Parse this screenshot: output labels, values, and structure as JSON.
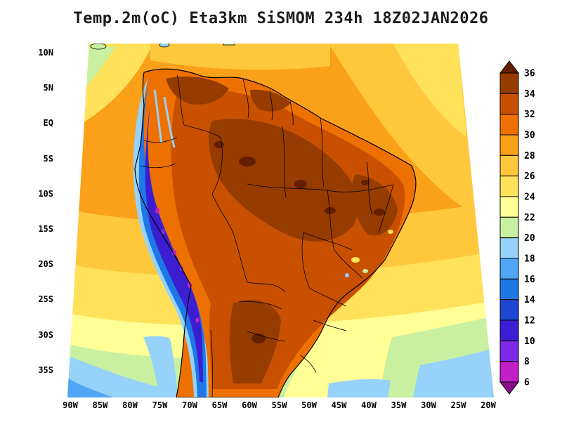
{
  "title": "Temp.2m(oC) Eta3km SiSMOM 234h 18Z02JAN2026",
  "chart_data": {
    "type": "heatmap",
    "title": "Temp.2m(oC) Eta3km SiSMOM 234h 18Z02JAN2026",
    "xlabel": "",
    "ylabel": "",
    "grid": false,
    "y_axis_ticks": [
      "10N",
      "5N",
      "EQ",
      "5S",
      "10S",
      "15S",
      "20S",
      "25S",
      "30S",
      "35S"
    ],
    "x_axis_ticks": [
      "90W",
      "85W",
      "80W",
      "75W",
      "70W",
      "65W",
      "60W",
      "55W",
      "50W",
      "45W",
      "40W",
      "35W",
      "30W",
      "25W",
      "20W"
    ],
    "colorbar": {
      "units": "oC",
      "position": "right",
      "levels": [
        6,
        8,
        10,
        12,
        14,
        16,
        18,
        20,
        22,
        24,
        26,
        28,
        30,
        32,
        34,
        36
      ],
      "colors_low_to_high": [
        "#8c0a8c",
        "#c41ec8",
        "#7d2ae8",
        "#3c1ed2",
        "#1e46d2",
        "#1e78e6",
        "#50a5f5",
        "#96d2fa",
        "#c8f0a0",
        "#ffff96",
        "#ffe25a",
        "#ffc83c",
        "#faa019",
        "#ee7000",
        "#c85000",
        "#963c00",
        "#641e00"
      ]
    }
  }
}
